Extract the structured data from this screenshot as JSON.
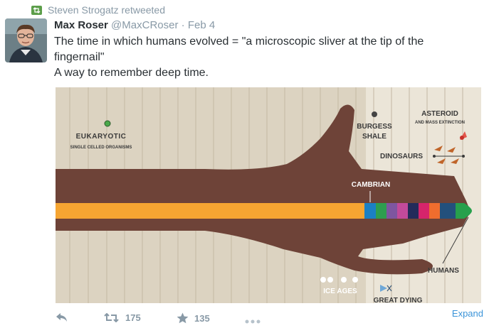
{
  "retweet_line": {
    "text": "Steven Strogatz retweeted",
    "icon": "retweet-icon"
  },
  "tweet": {
    "author_name": "Max Roser",
    "author_handle": "@MaxCRoser",
    "separator": "·",
    "date": "Feb 4",
    "text_line1": "The time in which humans evolved = \"a microscopic sliver at the tip of the",
    "text_line2": "fingernail\"",
    "text_line3": "A way to remember deep time."
  },
  "infographic": {
    "labels": {
      "eukaryotic": "EUKARYOTIC",
      "eukaryotic_sub": "SINGLE CELLED ORGANISMS",
      "burgess1": "BURGESS",
      "burgess2": "SHALE",
      "asteroid": "ASTEROID",
      "asteroid_sub": "AND MASS EXTINCTION",
      "dinosaurs": "DINOSAURS",
      "cambrian": "CAMBRIAN",
      "humans": "HUMANS",
      "ice_ages": "ICE AGES",
      "great_dying": "GREAT DYING"
    },
    "colors": {
      "background": "#dcd3c1",
      "background_right": "#ebe5d8",
      "arm": "#6e4338",
      "bar_orange": "#f6a532",
      "segments": [
        "#1b80c4",
        "#2e9e4f",
        "#7e56a0",
        "#c24a9a",
        "#232b5a",
        "#d6246b",
        "#ef6d2e",
        "#23507c",
        "#27a04c"
      ]
    }
  },
  "actions": {
    "reply_icon": "reply-icon",
    "retweet_count": "175",
    "favorite_count": "135",
    "more_icon": "more-icon"
  },
  "expand_label": "Expand"
}
